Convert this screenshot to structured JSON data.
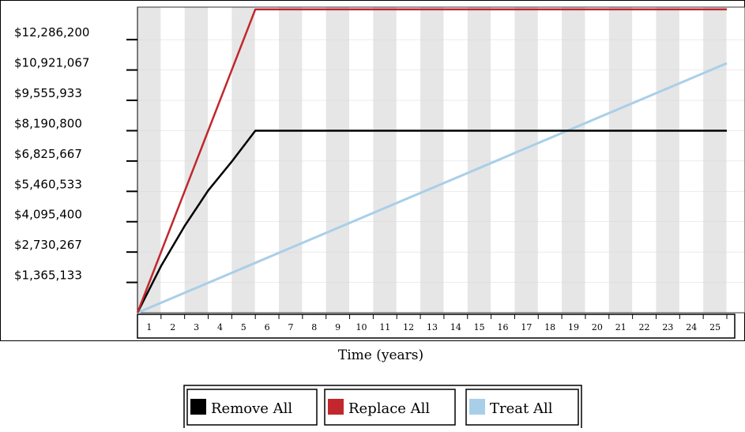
{
  "chart_data": {
    "type": "line",
    "title": "",
    "xlabel": "Time (years)",
    "ylabel": "",
    "x": [
      0,
      1,
      2,
      3,
      4,
      5,
      6,
      7,
      8,
      9,
      10,
      11,
      12,
      13,
      14,
      15,
      16,
      17,
      18,
      19,
      20,
      21,
      22,
      23,
      24,
      25
    ],
    "x_tick_labels": [
      "1",
      "2",
      "3",
      "4",
      "5",
      "6",
      "7",
      "8",
      "9",
      "10",
      "11",
      "12",
      "13",
      "14",
      "15",
      "16",
      "17",
      "18",
      "19",
      "20",
      "21",
      "22",
      "23",
      "24",
      "25"
    ],
    "y_tick_labels": [
      "$12,286,200",
      "$10,921,067",
      "$9,555,933",
      "$8,190,800",
      "$6,825,667",
      "$5,460,533",
      "$4,095,400",
      "$2,730,267",
      "$1,365,133"
    ],
    "y_ticks": [
      12286200,
      10921067,
      9555933,
      8190800,
      6825667,
      5460533,
      4095400,
      2730267,
      1365133
    ],
    "ylim": [
      0,
      13750000
    ],
    "xlim": [
      0,
      25
    ],
    "grid": true,
    "legend_position": "bottom-center",
    "series": [
      {
        "name": "Remove All",
        "color": "#000000",
        "values": [
          0,
          2100000,
          3900000,
          5500000,
          6800000,
          8190800,
          8190800,
          8190800,
          8190800,
          8190800,
          8190800,
          8190800,
          8190800,
          8190800,
          8190800,
          8190800,
          8190800,
          8190800,
          8190800,
          8190800,
          8190800,
          8190800,
          8190800,
          8190800,
          8190800,
          8190800
        ]
      },
      {
        "name": "Replace All",
        "color": "#c1272d",
        "values": [
          0,
          2730000,
          5460000,
          8190000,
          10920000,
          13650000,
          13650000,
          13650000,
          13650000,
          13650000,
          13650000,
          13650000,
          13650000,
          13650000,
          13650000,
          13650000,
          13650000,
          13650000,
          13650000,
          13650000,
          13650000,
          13650000,
          13650000,
          13650000,
          13650000,
          13650000
        ]
      },
      {
        "name": "Treat All",
        "color": "#a9cfe8",
        "values": [
          0,
          449000,
          898000,
          1347000,
          1796000,
          2245000,
          2694000,
          3143000,
          3592000,
          4041000,
          4490000,
          4939000,
          5388000,
          5837000,
          6286000,
          6735000,
          7184000,
          7633000,
          8082000,
          8531000,
          8980000,
          9429000,
          9878000,
          10327000,
          10776000,
          11225000
        ]
      }
    ]
  }
}
